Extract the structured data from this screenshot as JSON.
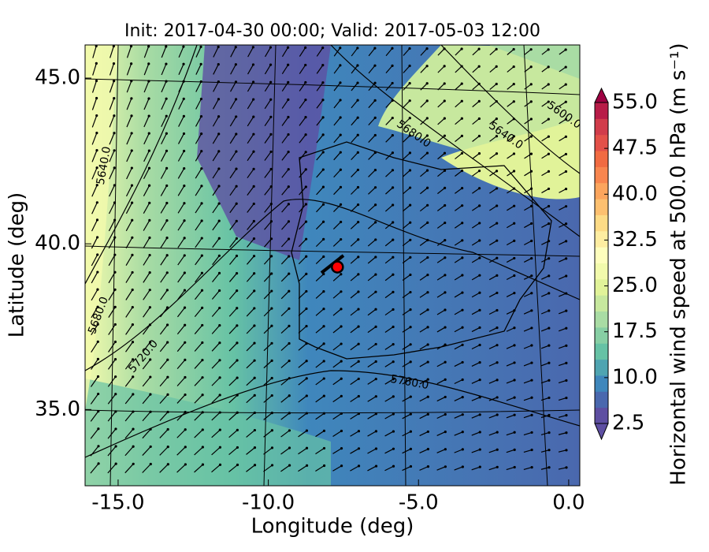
{
  "chart_data": {
    "type": "contour-map",
    "title": "Init: 2017-04-30 00:00; Valid: 2017-05-03 12:00",
    "x_label": "Longitude (deg)",
    "y_label": "Latitude (deg)",
    "xlim": [
      -16.1,
      0.37
    ],
    "ylim": [
      32.7,
      46.0
    ],
    "xticks": [
      {
        "value": -15,
        "label": "-15.0"
      },
      {
        "value": -10,
        "label": "-10.0"
      },
      {
        "value": -5,
        "label": "-5.0"
      },
      {
        "value": 0,
        "label": "0.0"
      }
    ],
    "yticks": [
      {
        "value": 35,
        "label": "35.0"
      },
      {
        "value": 40,
        "label": "40.0"
      },
      {
        "value": 45,
        "label": "45.0"
      }
    ],
    "contour_labels": [
      "5640.0",
      "5680.0",
      "5720.0",
      "5760.0",
      "5680.0",
      "5640.0",
      "5600.0"
    ],
    "marker": {
      "x": -7.7,
      "y": 39.3,
      "color": "#ff0000"
    },
    "colorbar": {
      "label": "Horizontal wind speed at 500.0 hPa (m s⁻¹)",
      "lim": [
        2.5,
        55
      ],
      "ticks": [
        2.5,
        {
          "value": 10,
          "label": "10.0"
        },
        17.5,
        {
          "value": 25,
          "label": "25.0"
        },
        32.5,
        {
          "value": 40,
          "label": "40.0"
        },
        47.5,
        {
          "value": 55,
          "label": "55.0"
        }
      ],
      "colors": [
        "#5e4fa2",
        "#4a68ae",
        "#3f87bc",
        "#4fa4b1",
        "#66c2a5",
        "#87cfa4",
        "#a9dca4",
        "#c7e89e",
        "#e1f399",
        "#f2faac",
        "#fefebd",
        "#feeda1",
        "#fddb86",
        "#fdc070",
        "#fca55d",
        "#f8864f",
        "#f16b42",
        "#e35149",
        "#d13c4b",
        "#b81c48",
        "#9e0142"
      ]
    }
  }
}
